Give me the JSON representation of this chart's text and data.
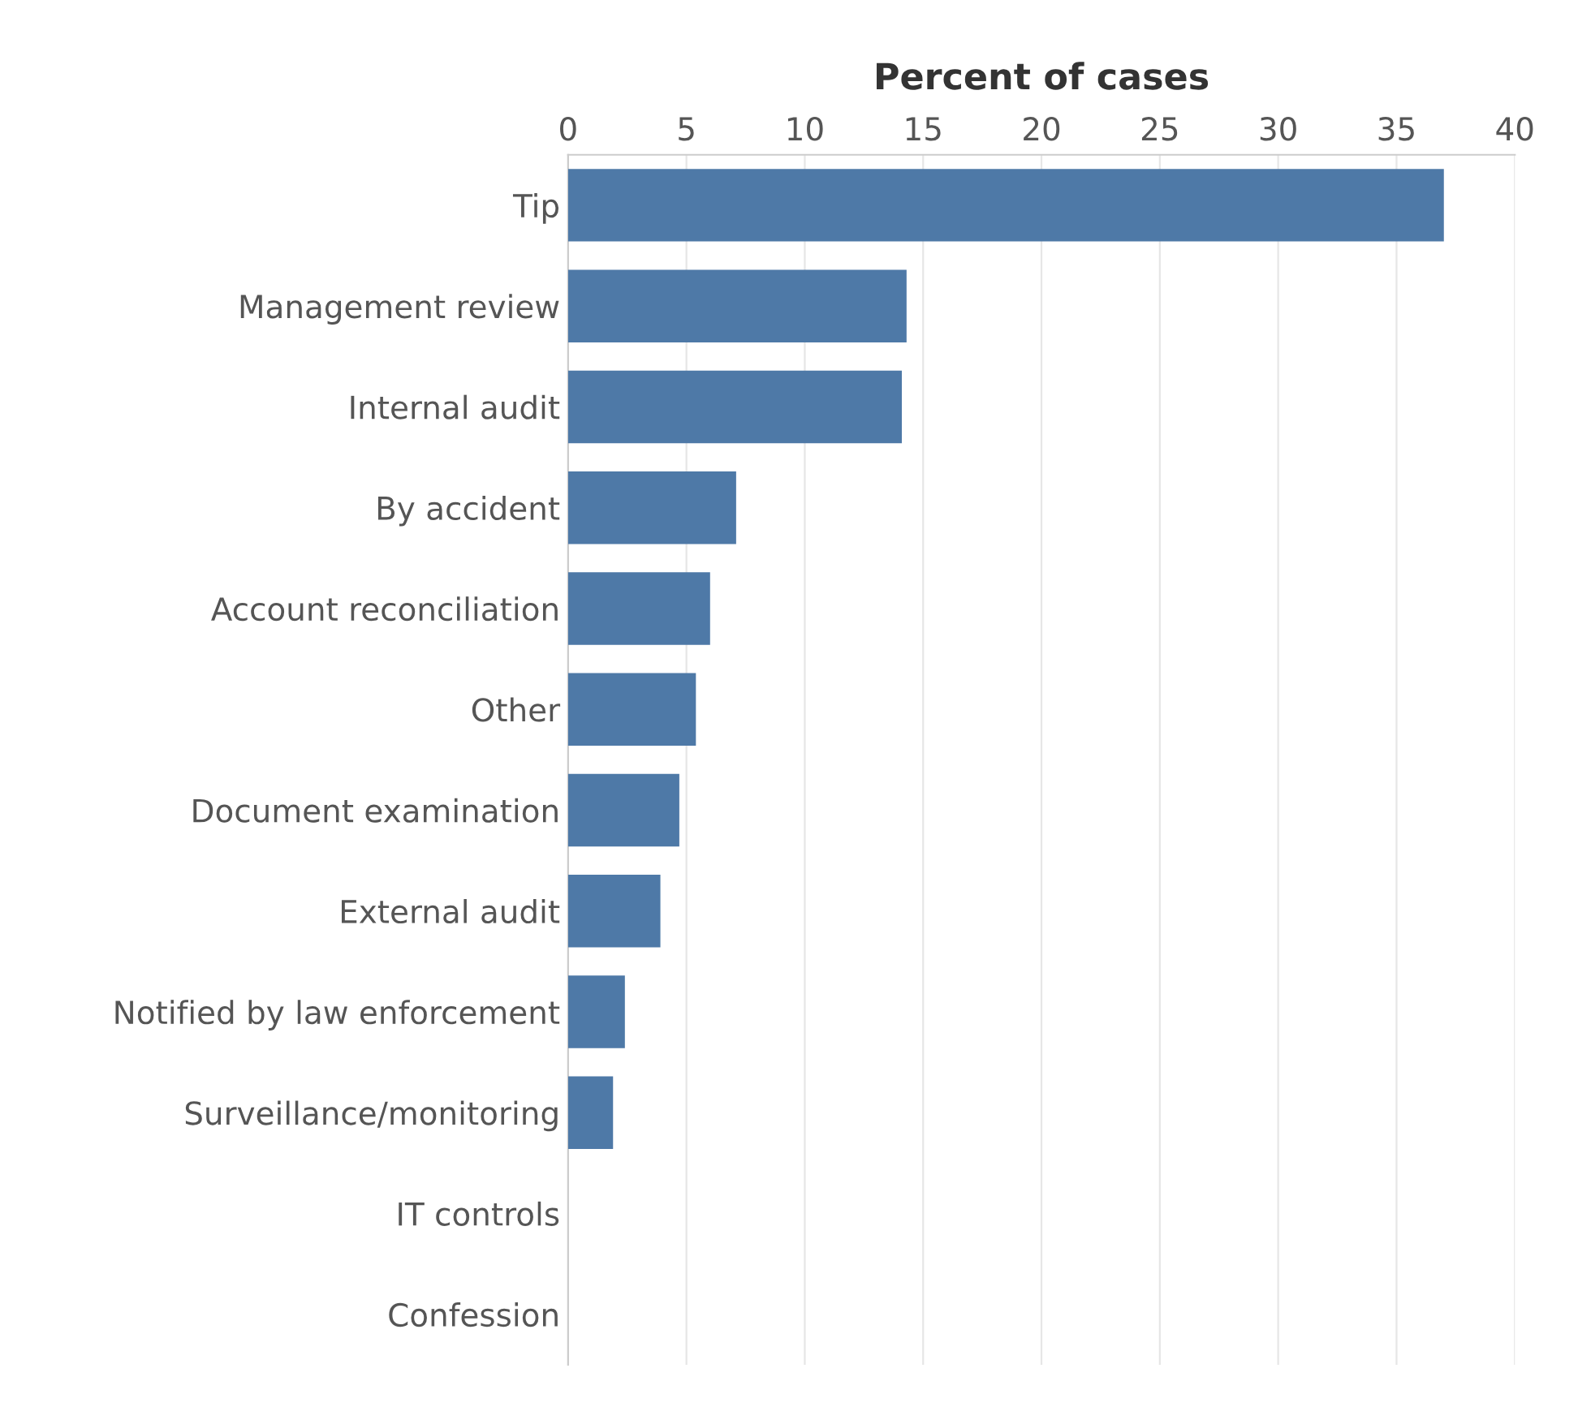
{
  "chart_data": {
    "type": "bar",
    "orientation": "horizontal",
    "xlabel": "Percent of cases",
    "categories": [
      "Tip",
      "Management review",
      "Internal audit",
      "By accident",
      "Account reconciliation",
      "Other",
      "Document examination",
      "External audit",
      "Notified by law enforcement",
      "Surveillance/monitoring",
      "IT controls",
      "Confession"
    ],
    "values": [
      37.0,
      14.3,
      14.1,
      7.1,
      6.0,
      5.4,
      4.7,
      3.9,
      2.4,
      1.9,
      null,
      null
    ],
    "color": "#4e79a7",
    "xlim": [
      0,
      40
    ],
    "xticks": [
      0,
      5,
      10,
      15,
      20,
      25,
      30,
      35,
      40
    ],
    "grid": "x"
  }
}
